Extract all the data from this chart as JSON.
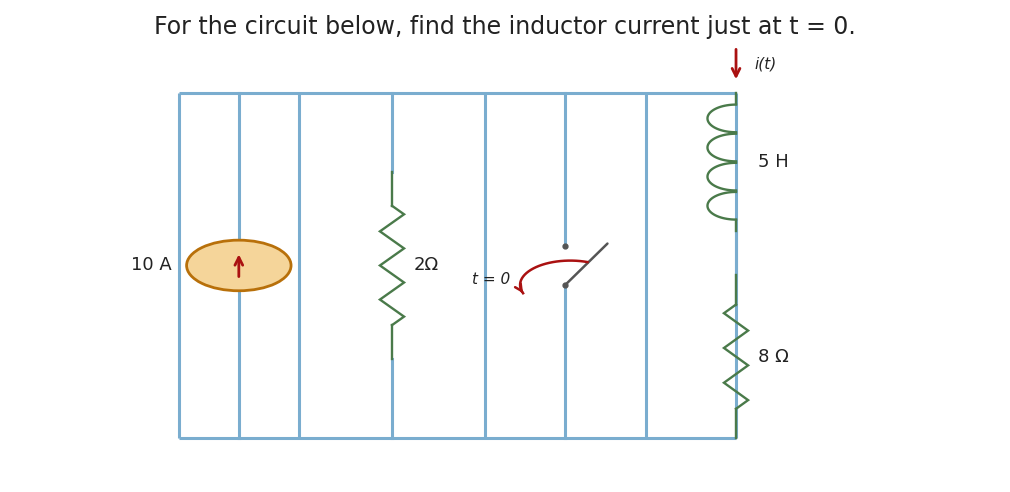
{
  "title": "For the circuit below, find the inductor current just at t = 0.",
  "title_fontsize": 17,
  "bg_color": "#ffffff",
  "line_color": "#7aadcf",
  "line_width": 2.2,
  "resistor_color": "#4a7a4a",
  "inductor_color": "#4a7a4a",
  "src_circle_fill": "#f5d59a",
  "src_circle_edge": "#b8700a",
  "arrow_color": "#aa1111",
  "switch_line_color": "#5b9bd5",
  "text_color": "#222222",
  "label_2ohm": "2Ω",
  "label_5H": "5 H",
  "label_8ohm": "8 Ω",
  "label_10A": "10 A",
  "label_it": "i(t)",
  "label_t0": "t = 0"
}
